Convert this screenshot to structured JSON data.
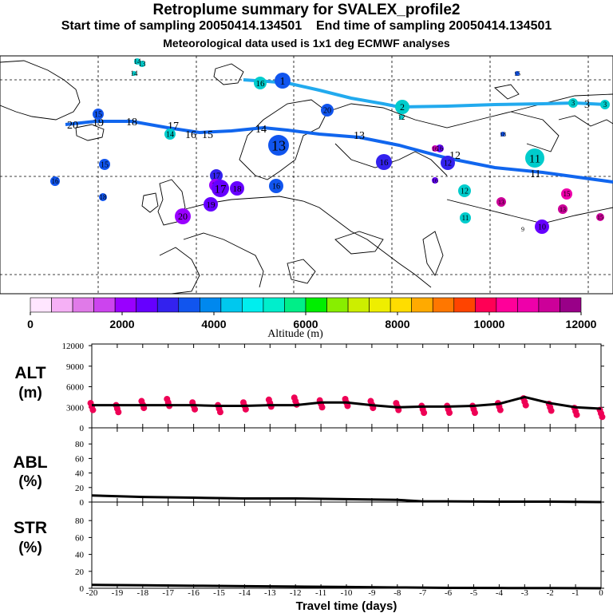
{
  "header": {
    "title": "Retroplume summary for SVALEX_profile2",
    "start_label": "Start time of sampling 20050414.134501",
    "end_label": "End time of sampling 20050414.134501",
    "met_label": "Meteorological data used is 1x1 deg ECMWF analyses"
  },
  "colorbar": {
    "tick_labels": [
      "0",
      "2000",
      "4000",
      "6000",
      "8000",
      "10000",
      "12000"
    ],
    "label": "Altitude (m)",
    "colors": [
      "#ffe6ff",
      "#f5b0f5",
      "#e07ae8",
      "#cc44ee",
      "#9900ff",
      "#6600ff",
      "#3322ee",
      "#1155ee",
      "#0088ee",
      "#00c8ee",
      "#00eeee",
      "#00eecc",
      "#00ee88",
      "#00ee00",
      "#88ee00",
      "#ccee00",
      "#eeee00",
      "#ffdd00",
      "#ffaa00",
      "#ff7700",
      "#ff4400",
      "#ff0055",
      "#ff0099",
      "#ee00aa",
      "#cc0099",
      "#990088"
    ]
  },
  "map": {
    "trajectory_labels": [
      {
        "text": "20",
        "col": "#000"
      },
      {
        "text": "19",
        "col": "#000"
      },
      {
        "text": "18",
        "col": "#000"
      },
      {
        "text": "17",
        "col": "#000"
      },
      {
        "text": "16",
        "col": "#000"
      },
      {
        "text": "15",
        "col": "#000"
      },
      {
        "text": "14",
        "col": "#000"
      },
      {
        "text": "13",
        "col": "#000"
      },
      {
        "text": "12",
        "col": "#000"
      },
      {
        "text": "11",
        "col": "#000"
      },
      {
        "text": "3",
        "col": "#000"
      },
      {
        "text": "1",
        "col": "#000"
      }
    ],
    "clusters": [
      {
        "label": "14",
        "color": "#00cccc"
      },
      {
        "label": "13",
        "color": "#00cccc"
      },
      {
        "label": "14",
        "color": "#00cccc"
      },
      {
        "label": "16",
        "color": "#00cccc"
      },
      {
        "label": "1",
        "color": "#1155ee"
      },
      {
        "label": "15",
        "color": "#1155ee"
      },
      {
        "label": "20",
        "color": "#1155ee"
      },
      {
        "label": "2",
        "color": "#00cccc"
      },
      {
        "label": "12",
        "color": "#00cccc"
      },
      {
        "label": "3",
        "color": "#00cccc"
      },
      {
        "label": "3",
        "color": "#00cccc"
      },
      {
        "label": "16",
        "color": "#1155ee"
      },
      {
        "label": "18",
        "color": "#1155ee"
      },
      {
        "label": "14",
        "color": "#00cccc"
      },
      {
        "label": "15",
        "color": "#1155ee"
      },
      {
        "label": "13",
        "color": "#1155ee"
      },
      {
        "label": "16",
        "color": "#3322ee"
      },
      {
        "label": "17",
        "color": "#3322ee"
      },
      {
        "label": "12",
        "color": "#3322ee"
      },
      {
        "label": "16",
        "color": "#6600ff"
      },
      {
        "label": "11",
        "color": "#00cccc"
      },
      {
        "label": "16",
        "color": "#1155ee"
      },
      {
        "label": "15",
        "color": "#1155ee"
      },
      {
        "label": "18",
        "color": "#1155ee"
      },
      {
        "label": "17",
        "color": "#9900ff"
      },
      {
        "label": "17",
        "color": "#6600ff"
      },
      {
        "label": "18",
        "color": "#6600ff"
      },
      {
        "label": "19",
        "color": "#6600ff"
      },
      {
        "label": "16",
        "color": "#6600ff"
      },
      {
        "label": "20",
        "color": "#9900ff"
      },
      {
        "label": "12",
        "color": "#00cccc"
      },
      {
        "label": "11",
        "color": "#00cccc"
      },
      {
        "label": "13",
        "color": "#cc0099"
      },
      {
        "label": "15",
        "color": "#ee00aa"
      },
      {
        "label": "13",
        "color": "#cc0099"
      },
      {
        "label": "9",
        "color": "#000"
      },
      {
        "label": "10",
        "color": "#6600ff"
      },
      {
        "label": "15",
        "color": "#cc0099"
      },
      {
        "label": "16",
        "color": "#cc00bb"
      }
    ]
  },
  "chart_data": [
    {
      "type": "line",
      "title": "ALT",
      "ylabel": "ALT (m)",
      "ylim": [
        0,
        12000
      ],
      "yticks": [
        "0",
        "3000",
        "6000",
        "9000",
        "12000"
      ],
      "x": [
        -20,
        -19,
        -18,
        -17,
        -16,
        -15,
        -14,
        -13,
        -12,
        -11,
        -10,
        -9,
        -8,
        -7,
        -6,
        -5,
        -4,
        -3,
        -2,
        -1,
        0
      ],
      "series": [
        {
          "name": "mean altitude",
          "values": [
            3300,
            3300,
            3300,
            3300,
            3300,
            3200,
            3200,
            3300,
            3300,
            3700,
            3700,
            3300,
            3000,
            3100,
            3100,
            3200,
            3500,
            4500,
            3600,
            3000,
            2800
          ]
        },
        {
          "name": "cluster altitudes",
          "values": [
            3800,
            3500,
            4100,
            4400,
            3900,
            3500,
            3900,
            4300,
            4600,
            4200,
            4400,
            4100,
            3800,
            3400,
            3400,
            3400,
            3800,
            4500,
            3700,
            3100,
            2800
          ]
        }
      ]
    },
    {
      "type": "line",
      "title": "ABL",
      "ylabel": "ABL (%)",
      "ylim": [
        0,
        100
      ],
      "yticks": [
        "0",
        "20",
        "40",
        "60",
        "80"
      ],
      "x": [
        -20,
        -18,
        -16,
        -14,
        -12,
        -10,
        -8,
        -7,
        -6,
        -4,
        -2,
        0
      ],
      "series": [
        {
          "name": "ABL fraction",
          "values": [
            9,
            7,
            6,
            5,
            5,
            4,
            3,
            1,
            1,
            0.5,
            0.5,
            0
          ]
        }
      ]
    },
    {
      "type": "line",
      "title": "STR",
      "ylabel": "STR (%)",
      "ylim": [
        0,
        100
      ],
      "yticks": [
        "0",
        "20",
        "40",
        "60",
        "80"
      ],
      "x": [
        -20,
        -18,
        -16,
        -14,
        -12,
        -10,
        -8,
        -6,
        -4,
        -2,
        0
      ],
      "series": [
        {
          "name": "stratosphere fraction",
          "values": [
            4,
            3.5,
            3,
            2.5,
            2,
            1.5,
            1,
            0.5,
            0.3,
            0.2,
            0
          ]
        }
      ]
    }
  ],
  "xaxis": {
    "tick_labels": [
      "-20",
      "-19",
      "-18",
      "-17",
      "-16",
      "-15",
      "-14",
      "-13",
      "-12",
      "-11",
      "-10",
      "-9",
      "-8",
      "-7",
      "-6",
      "-5",
      "-4",
      "-3",
      "-2",
      "-1",
      "0"
    ],
    "label": "Travel time (days)"
  },
  "panel_labels": {
    "alt1": "ALT",
    "alt2": "(m)",
    "abl1": "ABL",
    "abl2": "(%)",
    "str1": "STR",
    "str2": "(%)"
  }
}
